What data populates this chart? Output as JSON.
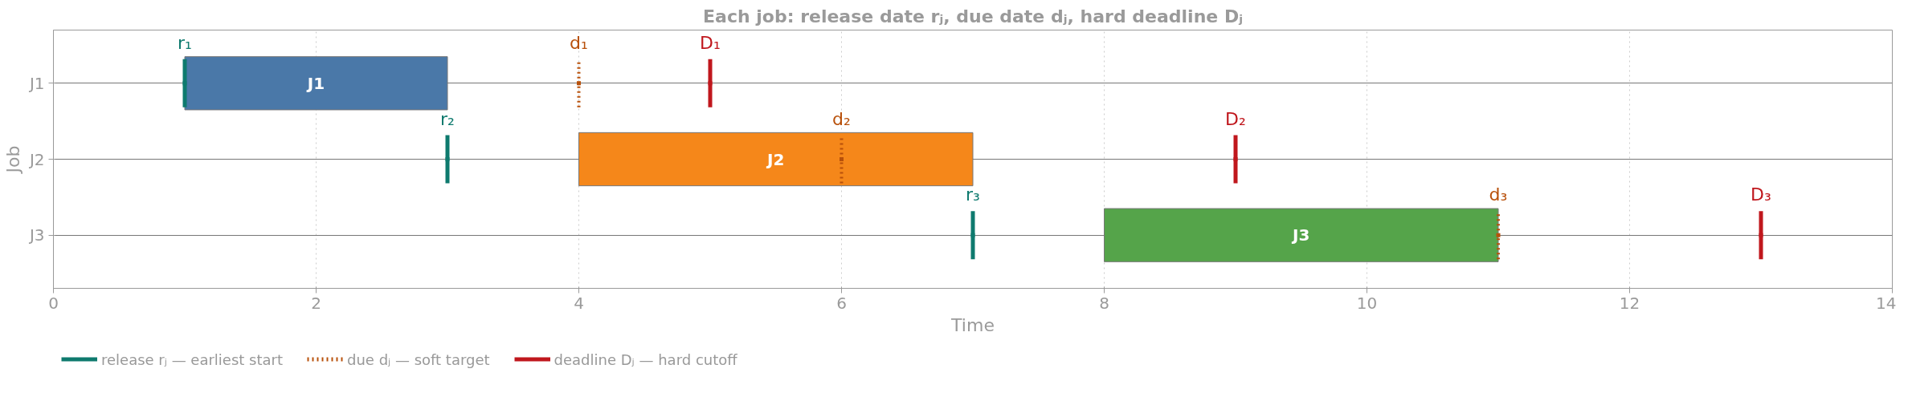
{
  "chart_data": {
    "type": "bar",
    "orientation": "horizontal",
    "title": "Each job: release date rⱼ, due date dⱼ, hard deadline Dⱼ",
    "xlabel": "Time",
    "ylabel": "Job",
    "categories": [
      "J1",
      "J2",
      "J3"
    ],
    "series": [
      {
        "type": "bar",
        "base": [
          1,
          4,
          8
        ],
        "values": [
          2,
          3,
          3
        ],
        "colors": [
          "#4a78a8",
          "#f5871a",
          "#55a44a"
        ],
        "value_labels": [
          "J1",
          "J2",
          "J3"
        ]
      },
      {
        "type": "scatter",
        "name": "release rⱼ — earliest start",
        "color": "#0e7a6e",
        "line_style": "solid",
        "values": [
          1,
          3,
          7
        ],
        "value_labels": [
          "r₁",
          "r₂",
          "r₃"
        ]
      },
      {
        "type": "scatter",
        "name": "due dⱼ — soft target",
        "color": "#b8500a",
        "line_style": "dotted",
        "values": [
          4,
          6,
          11
        ],
        "value_labels": [
          "d₁",
          "d₂",
          "d₃"
        ]
      },
      {
        "type": "scatter",
        "name": "deadline Dⱼ — hard cutoff",
        "color": "#c0171d",
        "line_style": "solid",
        "values": [
          5,
          9,
          13
        ],
        "value_labels": [
          "D₁",
          "D₂",
          "D₃"
        ]
      }
    ],
    "xlim": [
      0,
      14
    ],
    "xticks": [
      0,
      2,
      4,
      6,
      8,
      10,
      12,
      14
    ],
    "grid": true,
    "legend": "bottom"
  }
}
